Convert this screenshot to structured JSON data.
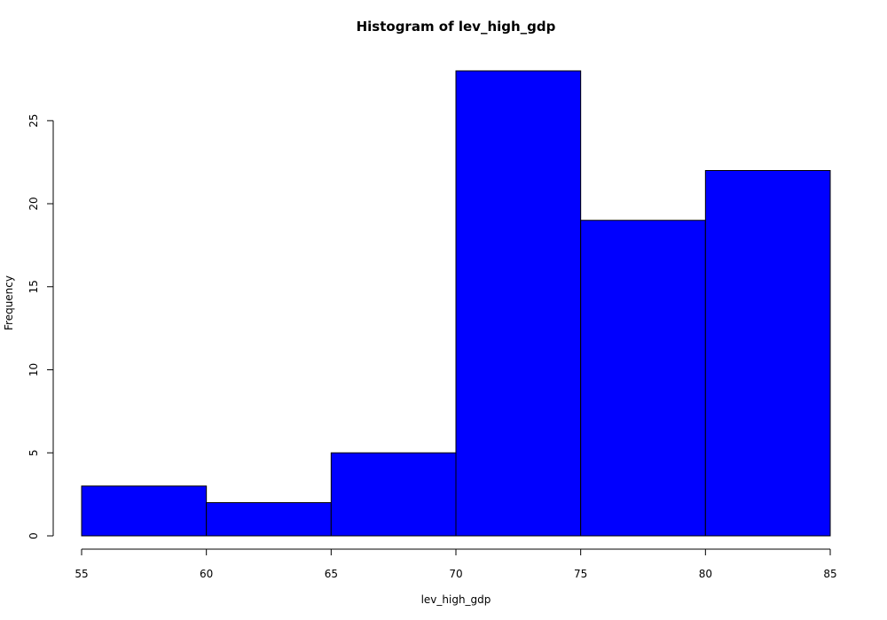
{
  "chart_data": {
    "type": "bar",
    "subtype": "histogram",
    "title": "Histogram of lev_high_gdp",
    "xlabel": "lev_high_gdp",
    "ylabel": "Frequency",
    "bins": [
      {
        "start": 55,
        "end": 60,
        "count": 3
      },
      {
        "start": 60,
        "end": 65,
        "count": 2
      },
      {
        "start": 65,
        "end": 70,
        "count": 5
      },
      {
        "start": 70,
        "end": 75,
        "count": 28
      },
      {
        "start": 75,
        "end": 80,
        "count": 19
      },
      {
        "start": 80,
        "end": 85,
        "count": 22
      }
    ],
    "xlim": [
      55,
      85
    ],
    "ylim": [
      0,
      28
    ],
    "x_ticks": [
      55,
      60,
      65,
      70,
      75,
      80,
      85
    ],
    "y_ticks": [
      0,
      5,
      10,
      15,
      20,
      25
    ],
    "bar_color": "#0000ff",
    "edge_color": "#000000",
    "grid": false
  }
}
